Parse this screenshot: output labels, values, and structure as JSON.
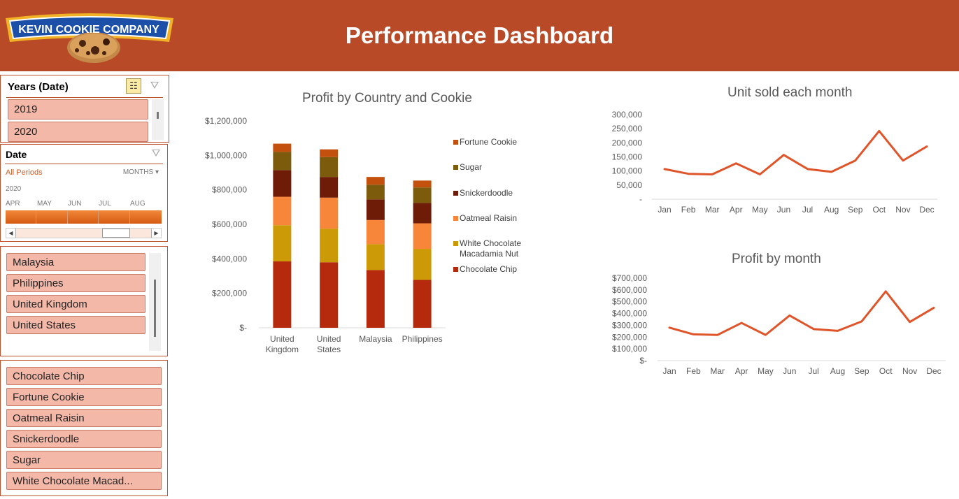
{
  "header": {
    "logo_text": "KEVIN COOKIE COMPANY",
    "title": "Performance Dashboard",
    "bg": "#b84a28"
  },
  "years_slicer": {
    "title": "Years (Date)",
    "items": [
      "2019",
      "2020"
    ],
    "multi_select_icon": "multi-select-icon",
    "clear_filter_icon": "clear-filter-icon"
  },
  "date_timeline": {
    "title": "Date",
    "all_periods": "All Periods",
    "period_unit": "MONTHS",
    "year": "2020",
    "months": [
      "APR",
      "MAY",
      "JUN",
      "JUL",
      "AUG"
    ]
  },
  "country_slicer": {
    "items": [
      "Malaysia",
      "Philippines",
      "United Kingdom",
      "United States"
    ]
  },
  "cookie_slicer": {
    "items": [
      "Chocolate Chip",
      "Fortune Cookie",
      "Oatmeal Raisin",
      "Snickerdoodle",
      "Sugar",
      "White Chocolate Macad..."
    ]
  },
  "chart_data": [
    {
      "type": "bar",
      "stacked": true,
      "title": "Profit by Country and Cookie",
      "categories": [
        "United Kingdom",
        "United States",
        "Malaysia",
        "Philippines"
      ],
      "category_labels": [
        [
          "United",
          "Kingdom"
        ],
        [
          "United",
          "States"
        ],
        [
          "Malaysia"
        ],
        [
          "Philippines"
        ]
      ],
      "y_ticks": [
        "$-",
        "$200,000",
        "$400,000",
        "$600,000",
        "$800,000",
        "$1,000,000",
        "$1,200,000"
      ],
      "ylim": [
        0,
        1200000
      ],
      "legend_position": "right",
      "series": [
        {
          "name": "Chocolate Chip",
          "color": "#b52a0d",
          "values": [
            385000,
            380000,
            335000,
            278000
          ]
        },
        {
          "name": "White Chocolate Macadamia Nut",
          "legend_lines": [
            "White Chocolate",
            "Macadamia Nut"
          ],
          "color": "#cc9a06",
          "values": [
            210000,
            195000,
            150000,
            180000
          ]
        },
        {
          "name": "Oatmeal Raisin",
          "color": "#f7853a",
          "values": [
            165000,
            180000,
            140000,
            148000
          ]
        },
        {
          "name": "Snickerdoodle",
          "color": "#6e1b07",
          "values": [
            155000,
            120000,
            120000,
            118000
          ]
        },
        {
          "name": "Sugar",
          "color": "#7c5c0c",
          "values": [
            105000,
            115000,
            85000,
            90000
          ]
        },
        {
          "name": "Fortune Cookie",
          "color": "#c4500e",
          "values": [
            48000,
            45000,
            45000,
            40000
          ]
        }
      ]
    },
    {
      "type": "line",
      "title": "Unit sold each month",
      "x": [
        "Jan",
        "Feb",
        "Mar",
        "Apr",
        "May",
        "Jun",
        "Jul",
        "Aug",
        "Sep",
        "Oct",
        "Nov",
        "Dec"
      ],
      "y_ticks": [
        "-",
        "50,000",
        "100,000",
        "150,000",
        "200,000",
        "250,000",
        "300,000"
      ],
      "ylim": [
        0,
        300000
      ],
      "series": [
        {
          "color": "#e0542a",
          "values": [
            107000,
            90000,
            88000,
            127000,
            88000,
            157000,
            107000,
            97000,
            137000,
            242000,
            137000,
            187000
          ]
        }
      ]
    },
    {
      "type": "line",
      "title": "Profit by month",
      "x": [
        "Jan",
        "Feb",
        "Mar",
        "Apr",
        "May",
        "Jun",
        "Jul",
        "Aug",
        "Sep",
        "Oct",
        "Nov",
        "Dec"
      ],
      "y_ticks": [
        "$-",
        "$100,000",
        "$200,000",
        "$300,000",
        "$400,000",
        "$500,000",
        "$600,000",
        "$700,000"
      ],
      "ylim": [
        0,
        700000
      ],
      "series": [
        {
          "color": "#e0542a",
          "values": [
            280000,
            223000,
            218000,
            320000,
            218000,
            383000,
            268000,
            253000,
            333000,
            588000,
            328000,
            448000
          ]
        }
      ]
    }
  ]
}
